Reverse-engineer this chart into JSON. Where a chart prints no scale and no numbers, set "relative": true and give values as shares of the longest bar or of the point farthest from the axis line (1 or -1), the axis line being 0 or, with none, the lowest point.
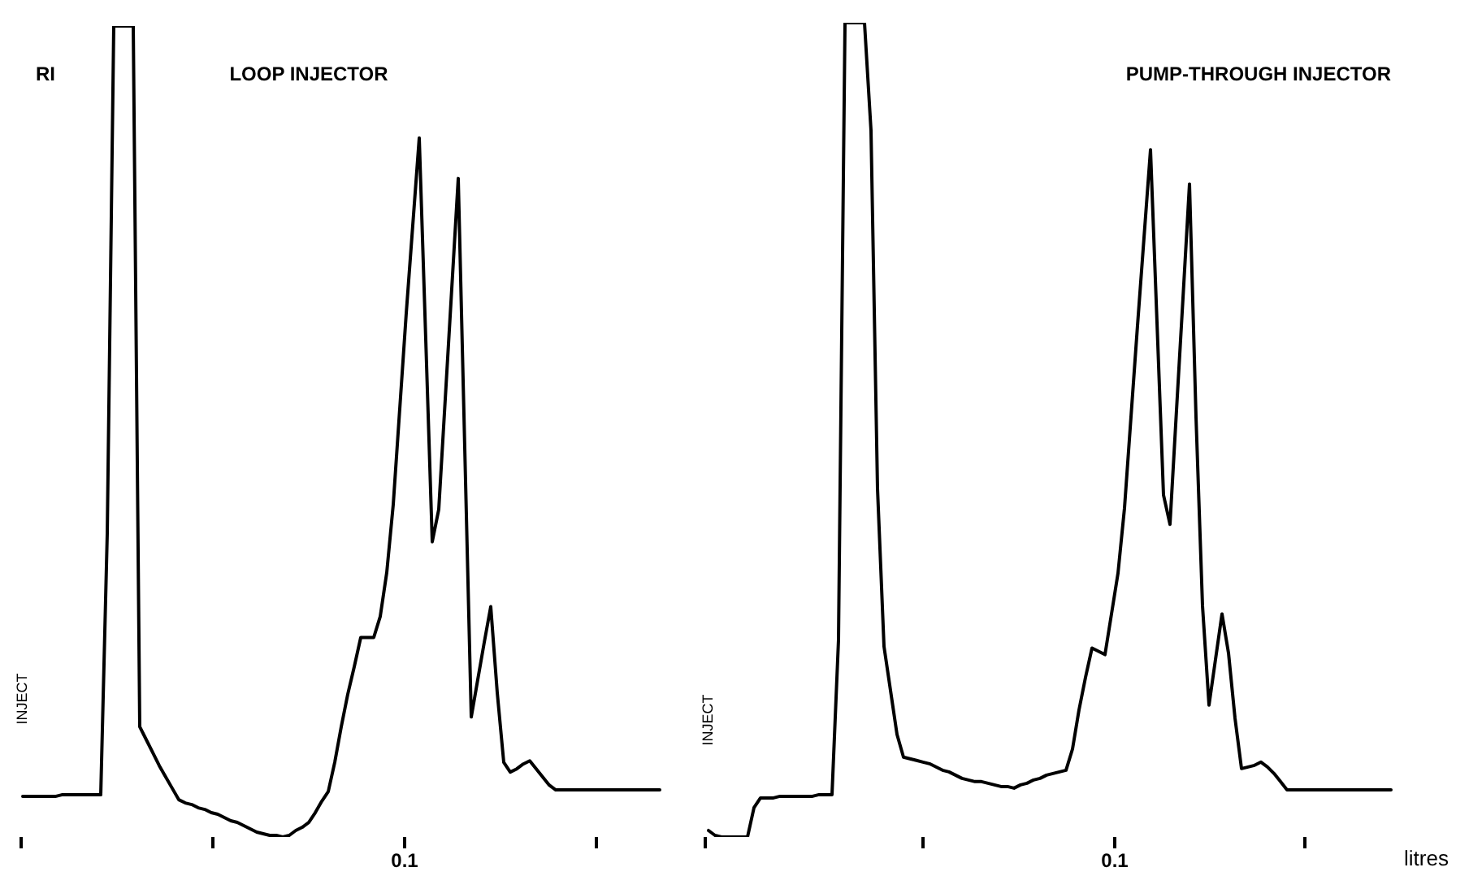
{
  "chart_data": [
    {
      "type": "line",
      "title": "LOOP INJECTOR",
      "ylabel": "RI",
      "relative": true,
      "color": "#000000",
      "marker": "none",
      "legend": false,
      "annotations": [
        "INJECT",
        "0.1"
      ],
      "categories": [
        null,
        null,
        null,
        null,
        null,
        null,
        null,
        null,
        null,
        null,
        null,
        null,
        null,
        null,
        null,
        null,
        null,
        null,
        null,
        null,
        null,
        null,
        null,
        null,
        null,
        null,
        null,
        null,
        null,
        null,
        null,
        null,
        null,
        null,
        null,
        null,
        null,
        null,
        null,
        null,
        null,
        null,
        null,
        null,
        null,
        null,
        null,
        null,
        null,
        null,
        null,
        null,
        null,
        null,
        null,
        null,
        null,
        null,
        null,
        null,
        null,
        null,
        null,
        null,
        null,
        null,
        null,
        null,
        null,
        null,
        null,
        null,
        null,
        null,
        null,
        null,
        null,
        null,
        null,
        null,
        null,
        null,
        null,
        null,
        null,
        null,
        null,
        null,
        null,
        null,
        null,
        null,
        null,
        null,
        null,
        null,
        null,
        null,
        null
      ],
      "values": [
        0.05,
        0.05,
        0.05,
        0.05,
        0.05,
        0.05,
        0.052,
        0.052,
        0.052,
        0.052,
        0.052,
        0.052,
        0.052,
        0.374,
        1,
        1,
        1,
        1,
        0.136,
        0.12,
        0.104,
        0.088,
        0.074,
        0.06,
        0.046,
        0.042,
        0.04,
        0.036,
        0.034,
        0.03,
        0.028,
        0.024,
        0.02,
        0.018,
        0.014,
        0.01,
        0.006,
        0.004,
        0.002,
        0.002,
        0,
        0.002,
        0.008,
        0.012,
        0.018,
        0.03,
        0.044,
        0.056,
        0.092,
        0.136,
        0.176,
        0.21,
        0.246,
        0.246,
        0.246,
        0.272,
        0.326,
        0.41,
        0.528,
        0.646,
        0.754,
        0.862,
        0.614,
        0.364,
        0.404,
        0.54,
        0.676,
        0.812,
        0.48,
        0.148,
        0.194,
        0.24,
        0.284,
        0.178,
        0.092,
        0.08,
        0.084,
        0.09,
        0.094,
        0.084,
        0.074,
        0.064,
        0.058,
        0.058,
        0.058,
        0.058,
        0.058,
        0.058,
        0.058,
        0.058,
        0.058,
        0.058,
        0.058,
        0.058,
        0.058,
        0.058,
        0.058,
        0.058,
        0.058
      ]
    },
    {
      "type": "line",
      "title": "PUMP-THROUGH INJECTOR",
      "xlabel": "litres",
      "relative": true,
      "color": "#000000",
      "marker": "none",
      "legend": false,
      "annotations": [
        "INJECT",
        "0.1"
      ],
      "categories": [
        null,
        null,
        null,
        null,
        null,
        null,
        null,
        null,
        null,
        null,
        null,
        null,
        null,
        null,
        null,
        null,
        null,
        null,
        null,
        null,
        null,
        null,
        null,
        null,
        null,
        null,
        null,
        null,
        null,
        null,
        null,
        null,
        null,
        null,
        null,
        null,
        null,
        null,
        null,
        null,
        null,
        null,
        null,
        null,
        null,
        null,
        null,
        null,
        null,
        null,
        null,
        null,
        null,
        null,
        null,
        null,
        null,
        null,
        null,
        null,
        null,
        null,
        null,
        null,
        null,
        null,
        null,
        null,
        null,
        null,
        null,
        null,
        null,
        null,
        null,
        null,
        null,
        null,
        null,
        null,
        null,
        null,
        null,
        null,
        null,
        null,
        null,
        null,
        null,
        null,
        null,
        null,
        null,
        null,
        null,
        null,
        null,
        null,
        null,
        null,
        null,
        null,
        null,
        null,
        null,
        null
      ],
      "values": [
        0.008,
        0.002,
        0,
        0,
        0,
        0,
        0,
        0.036,
        0.048,
        0.048,
        0.048,
        0.05,
        0.05,
        0.05,
        0.05,
        0.05,
        0.05,
        0.052,
        0.052,
        0.052,
        0.242,
        1,
        1,
        1,
        1,
        0.868,
        0.428,
        0.234,
        0.18,
        0.126,
        0.098,
        0.096,
        0.094,
        0.092,
        0.09,
        0.086,
        0.082,
        0.08,
        0.076,
        0.072,
        0.07,
        0.068,
        0.068,
        0.066,
        0.064,
        0.062,
        0.062,
        0.06,
        0.064,
        0.066,
        0.07,
        0.072,
        0.076,
        0.078,
        0.08,
        0.082,
        0.108,
        0.156,
        0.196,
        0.232,
        0.228,
        0.224,
        0.274,
        0.324,
        0.404,
        0.516,
        0.628,
        0.736,
        0.844,
        0.632,
        0.42,
        0.384,
        0.524,
        0.662,
        0.802,
        0.516,
        0.284,
        0.162,
        0.218,
        0.274,
        0.226,
        0.146,
        0.084,
        0.086,
        0.088,
        0.092,
        0.086,
        0.078,
        0.068,
        0.058,
        0.058,
        0.058,
        0.058,
        0.058,
        0.058,
        0.058,
        0.058,
        0.058,
        0.058,
        0.058,
        0.058,
        0.058,
        0.058,
        0.058,
        0.058,
        0.058
      ]
    }
  ]
}
